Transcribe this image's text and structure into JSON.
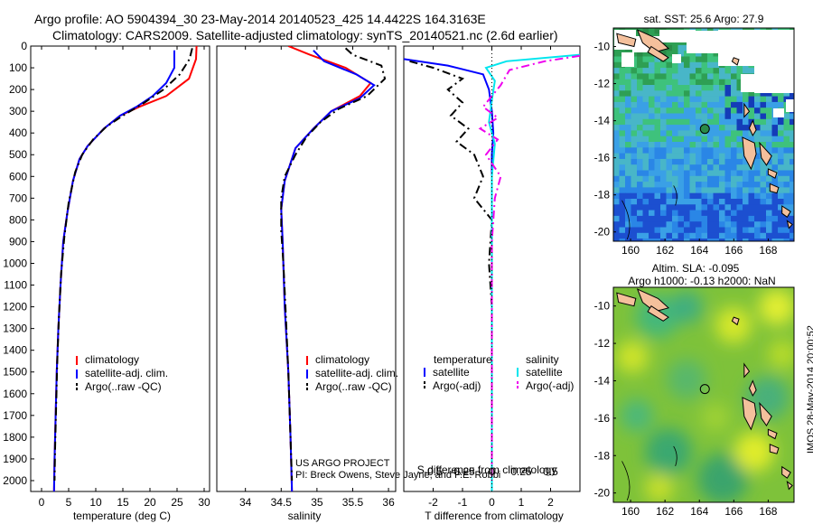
{
  "header": {
    "line1": "Argo profile: AO 5904394_30 23-May-2014 20140523_425 14.4422S 164.3163E",
    "line2": "Climatology: CARS2009. Satellite-adjusted climatology: synTS_20140521.nc (2.6d earlier)"
  },
  "stamp": "IMOS 28-May-2014 20:00:52",
  "colors": {
    "climatology": "#ff0000",
    "satellite": "#0000ff",
    "argo": "#000000",
    "sat_temp": "#00e5ee",
    "sat_sal": "#ee00ee",
    "land": "#f4c09c"
  },
  "chart_data": [
    {
      "id": "temperature",
      "type": "line",
      "xlabel": "temperature (deg C)",
      "ylabel": "",
      "xlim": [
        -2,
        31
      ],
      "ylim": [
        0,
        2050
      ],
      "xticks": [
        0,
        5,
        10,
        15,
        20,
        25,
        30
      ],
      "yticks": [
        0,
        100,
        200,
        300,
        400,
        500,
        600,
        700,
        800,
        900,
        1000,
        1100,
        1200,
        1300,
        1400,
        1500,
        1600,
        1700,
        1800,
        1900,
        2000
      ],
      "legend": [
        "climatology",
        "satellite-adj. clim.",
        "Argo(..raw -QC)"
      ],
      "series": [
        {
          "name": "climatology",
          "style": "solid",
          "color": "#ff0000",
          "points": [
            [
              28.6,
              0
            ],
            [
              28.5,
              60
            ],
            [
              27.2,
              150
            ],
            [
              23,
              230
            ],
            [
              18,
              280
            ],
            [
              14.5,
              320
            ],
            [
              11.5,
              380
            ],
            [
              8.5,
              460
            ],
            [
              7,
              520
            ],
            [
              5.8,
              620
            ],
            [
              4.8,
              760
            ],
            [
              4,
              900
            ],
            [
              3.5,
              1100
            ],
            [
              3.1,
              1300
            ],
            [
              2.8,
              1500
            ],
            [
              2.6,
              1700
            ],
            [
              2.4,
              1900
            ],
            [
              2.3,
              2050
            ]
          ]
        },
        {
          "name": "satellite-adj. clim.",
          "style": "solid",
          "color": "#0000ff",
          "points": [
            [
              24.5,
              20
            ],
            [
              24.5,
              100
            ],
            [
              23,
              170
            ],
            [
              20.5,
              230
            ],
            [
              17.5,
              280
            ],
            [
              14.5,
              320
            ],
            [
              11.5,
              380
            ],
            [
              8.5,
              460
            ],
            [
              7,
              520
            ],
            [
              5.8,
              620
            ],
            [
              4.8,
              760
            ],
            [
              4,
              900
            ],
            [
              3.5,
              1100
            ],
            [
              3.1,
              1300
            ],
            [
              2.8,
              1500
            ],
            [
              2.6,
              1700
            ],
            [
              2.4,
              1900
            ],
            [
              2.3,
              2050
            ]
          ]
        },
        {
          "name": "Argo(..raw -QC)",
          "style": "dash",
          "color": "#000000",
          "points": [
            [
              27.8,
              10
            ],
            [
              27.3,
              60
            ],
            [
              25.5,
              130
            ],
            [
              22.5,
              200
            ],
            [
              19,
              260
            ],
            [
              15,
              320
            ],
            [
              12,
              370
            ],
            [
              9.5,
              430
            ],
            [
              7.5,
              500
            ],
            [
              6.2,
              580
            ],
            [
              5,
              720
            ],
            [
              4.2,
              880
            ],
            [
              3.6,
              1050
            ],
            [
              3.2,
              1250
            ],
            [
              2.9,
              1450
            ],
            [
              2.7,
              1650
            ],
            [
              2.5,
              1850
            ],
            [
              2.4,
              2000
            ]
          ]
        }
      ]
    },
    {
      "id": "salinity",
      "type": "line",
      "xlabel": "salinity",
      "xlim": [
        33.6,
        36.1
      ],
      "ylim": [
        0,
        2050
      ],
      "xticks": [
        34,
        34.5,
        35,
        35.5,
        36
      ],
      "legend": [
        "climatology",
        "satellite-adj. clim.",
        "Argo(..raw -QC)"
      ],
      "series": [
        {
          "name": "climatology",
          "style": "solid",
          "color": "#ff0000",
          "points": [
            [
              34.6,
              0
            ],
            [
              34.9,
              40
            ],
            [
              35.4,
              100
            ],
            [
              35.75,
              170
            ],
            [
              35.6,
              230
            ],
            [
              35.2,
              300
            ],
            [
              34.95,
              380
            ],
            [
              34.7,
              470
            ],
            [
              34.55,
              620
            ],
            [
              34.5,
              750
            ],
            [
              34.52,
              900
            ],
            [
              34.55,
              1200
            ],
            [
              34.6,
              1500
            ],
            [
              34.63,
              1800
            ],
            [
              34.65,
              2050
            ]
          ]
        },
        {
          "name": "satellite-adj. clim.",
          "style": "solid",
          "color": "#0000ff",
          "points": [
            [
              34.95,
              20
            ],
            [
              35.1,
              70
            ],
            [
              35.55,
              130
            ],
            [
              35.8,
              180
            ],
            [
              35.6,
              240
            ],
            [
              35.2,
              300
            ],
            [
              34.95,
              380
            ],
            [
              34.7,
              470
            ],
            [
              34.55,
              620
            ],
            [
              34.5,
              750
            ],
            [
              34.52,
              900
            ],
            [
              34.55,
              1200
            ],
            [
              34.6,
              1500
            ],
            [
              34.63,
              1800
            ],
            [
              34.65,
              2050
            ]
          ]
        },
        {
          "name": "Argo(..raw -QC)",
          "style": "dash",
          "color": "#000000",
          "points": [
            [
              35.4,
              10
            ],
            [
              35.5,
              40
            ],
            [
              35.9,
              90
            ],
            [
              35.95,
              150
            ],
            [
              35.7,
              230
            ],
            [
              35.3,
              290
            ],
            [
              35.05,
              350
            ],
            [
              34.85,
              420
            ],
            [
              34.7,
              500
            ],
            [
              34.55,
              600
            ],
            [
              34.5,
              700
            ],
            [
              34.5,
              850
            ],
            [
              34.53,
              1000
            ],
            [
              34.56,
              1200
            ],
            [
              34.6,
              1500
            ],
            [
              34.63,
              1800
            ],
            [
              34.65,
              2000
            ]
          ]
        }
      ]
    },
    {
      "id": "difference",
      "type": "line",
      "xlabel": "T difference from climatology",
      "xlabel2": "S difference from climatology",
      "xlim": [
        -3,
        3
      ],
      "ylim": [
        0,
        2050
      ],
      "xticks": [
        -2,
        -1,
        0,
        1,
        2
      ],
      "xticks2": [
        -0.5,
        -0.25,
        0,
        0.25,
        0.5
      ],
      "legend_headers": [
        "temperature",
        "salinity"
      ],
      "legend": [
        "satellite",
        "Argo(-adj)",
        "satellite",
        "Argo(-adj)"
      ],
      "series": [
        {
          "name": "temperature satellite",
          "style": "solid",
          "color": "#0000ff",
          "points": [
            [
              -3,
              60
            ],
            [
              -1.5,
              90
            ],
            [
              -0.3,
              130
            ],
            [
              -0.1,
              200
            ],
            [
              0,
              300
            ],
            [
              0.05,
              400
            ],
            [
              0,
              500
            ],
            [
              0,
              700
            ],
            [
              0,
              900
            ],
            [
              0,
              1200
            ],
            [
              0,
              1500
            ],
            [
              0,
              1800
            ],
            [
              0,
              2050
            ]
          ]
        },
        {
          "name": "temperature Argo(-adj)",
          "style": "dash",
          "color": "#000000",
          "points": [
            [
              -2.8,
              70
            ],
            [
              -2,
              100
            ],
            [
              -1,
              150
            ],
            [
              -1.5,
              200
            ],
            [
              -1,
              260
            ],
            [
              -1.4,
              320
            ],
            [
              -0.8,
              380
            ],
            [
              -1.2,
              440
            ],
            [
              -0.6,
              500
            ],
            [
              -0.3,
              600
            ],
            [
              -0.6,
              700
            ],
            [
              0,
              800
            ],
            [
              -0.1,
              1000
            ],
            [
              0,
              1200
            ],
            [
              0,
              1500
            ],
            [
              0,
              1800
            ],
            [
              0,
              2000
            ]
          ]
        },
        {
          "name": "salinity satellite",
          "style": "solid",
          "color": "#00e5ee",
          "points": [
            [
              3,
              40
            ],
            [
              0.5,
              70
            ],
            [
              -0.2,
              100
            ],
            [
              0.1,
              160
            ],
            [
              0,
              250
            ],
            [
              -0.1,
              350
            ],
            [
              0.1,
              450
            ],
            [
              0,
              600
            ],
            [
              0,
              800
            ],
            [
              0,
              1100
            ],
            [
              0,
              1500
            ],
            [
              0,
              1800
            ],
            [
              0,
              2050
            ]
          ]
        },
        {
          "name": "salinity Argo(-adj)",
          "style": "dash",
          "color": "#ee00ee",
          "points": [
            [
              3,
              45
            ],
            [
              1.8,
              70
            ],
            [
              0.6,
              110
            ],
            [
              0.3,
              180
            ],
            [
              -0.3,
              280
            ],
            [
              0.2,
              330
            ],
            [
              -0.4,
              380
            ],
            [
              0.2,
              430
            ],
            [
              -0.2,
              500
            ],
            [
              0.3,
              600
            ],
            [
              0.1,
              700
            ],
            [
              0,
              900
            ],
            [
              0,
              1200
            ],
            [
              0,
              1500
            ],
            [
              0,
              2000
            ]
          ]
        }
      ]
    },
    {
      "id": "map_sst",
      "type": "heatmap",
      "title": "sat. SST: 25.6 Argo: 27.9",
      "xlim": [
        159,
        169.5
      ],
      "ylim": [
        -20.5,
        -9
      ],
      "xticks": [
        160,
        162,
        164,
        166,
        168
      ],
      "yticks": [
        -10,
        -12,
        -14,
        -16,
        -18,
        -20
      ],
      "marker": {
        "lon": 164.3163,
        "lat": -14.4422
      }
    },
    {
      "id": "map_sla",
      "type": "heatmap",
      "title": "Altim. SLA: -0.095",
      "subtitle": "Argo h1000: -0.13 h2000: NaN",
      "xlim": [
        159,
        169.5
      ],
      "ylim": [
        -20.5,
        -9
      ],
      "xticks": [
        160,
        162,
        164,
        166,
        168
      ],
      "yticks": [
        -10,
        -12,
        -14,
        -16,
        -18,
        -20
      ],
      "marker": {
        "lon": 164.3163,
        "lat": -14.4422
      }
    }
  ],
  "credits": {
    "line1": "US ARGO PROJECT",
    "line2": "PI: Breck Owens, Steve Jayne, and P.E. Robbi"
  }
}
